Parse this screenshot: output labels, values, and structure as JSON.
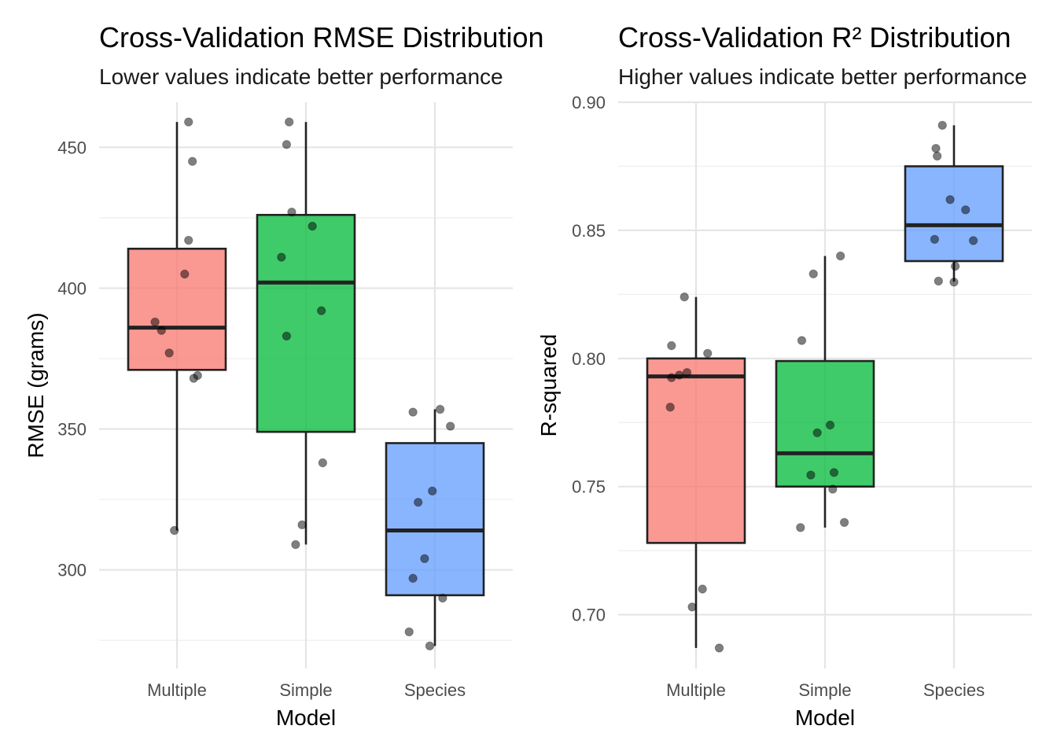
{
  "chart_data": [
    {
      "type": "box",
      "title": "Cross-Validation RMSE Distribution",
      "subtitle": "Lower values indicate better performance",
      "xlabel": "Model",
      "ylabel": "RMSE (grams)",
      "categories": [
        "Multiple",
        "Simple",
        "Species"
      ],
      "ylim": [
        265,
        466
      ],
      "yticks": [
        300,
        350,
        400,
        450
      ],
      "colors": [
        "#F8766D",
        "#00BA38",
        "#619CFF"
      ],
      "boxes": [
        {
          "name": "Multiple",
          "whisker_low": 314,
          "q1": 371,
          "median": 386,
          "q3": 414,
          "whisker_high": 459
        },
        {
          "name": "Simple",
          "whisker_low": 309,
          "q1": 349,
          "median": 402,
          "q3": 426,
          "whisker_high": 459
        },
        {
          "name": "Species",
          "whisker_low": 273,
          "q1": 291,
          "median": 314,
          "q3": 345,
          "whisker_high": 357
        }
      ],
      "points": [
        {
          "category": "Multiple",
          "y": 459,
          "jitter": 0.09
        },
        {
          "category": "Multiple",
          "y": 445,
          "jitter": 0.12
        },
        {
          "category": "Multiple",
          "y": 417,
          "jitter": 0.09
        },
        {
          "category": "Multiple",
          "y": 405,
          "jitter": 0.06
        },
        {
          "category": "Multiple",
          "y": 388,
          "jitter": -0.17
        },
        {
          "category": "Multiple",
          "y": 385,
          "jitter": -0.12
        },
        {
          "category": "Multiple",
          "y": 377,
          "jitter": -0.06
        },
        {
          "category": "Multiple",
          "y": 369,
          "jitter": 0.16
        },
        {
          "category": "Multiple",
          "y": 368,
          "jitter": 0.13
        },
        {
          "category": "Multiple",
          "y": 314,
          "jitter": -0.02
        },
        {
          "category": "Simple",
          "y": 459,
          "jitter": -0.13
        },
        {
          "category": "Simple",
          "y": 451,
          "jitter": -0.15
        },
        {
          "category": "Simple",
          "y": 427,
          "jitter": -0.11
        },
        {
          "category": "Simple",
          "y": 422,
          "jitter": 0.05
        },
        {
          "category": "Simple",
          "y": 411,
          "jitter": -0.19
        },
        {
          "category": "Simple",
          "y": 392,
          "jitter": 0.12
        },
        {
          "category": "Simple",
          "y": 383,
          "jitter": -0.15
        },
        {
          "category": "Simple",
          "y": 338,
          "jitter": 0.13
        },
        {
          "category": "Simple",
          "y": 316,
          "jitter": -0.03
        },
        {
          "category": "Simple",
          "y": 309,
          "jitter": -0.08
        },
        {
          "category": "Species",
          "y": 357,
          "jitter": 0.04
        },
        {
          "category": "Species",
          "y": 356,
          "jitter": -0.17
        },
        {
          "category": "Species",
          "y": 351,
          "jitter": 0.12
        },
        {
          "category": "Species",
          "y": 328,
          "jitter": -0.02
        },
        {
          "category": "Species",
          "y": 324,
          "jitter": -0.13
        },
        {
          "category": "Species",
          "y": 304,
          "jitter": -0.08
        },
        {
          "category": "Species",
          "y": 297,
          "jitter": -0.17
        },
        {
          "category": "Species",
          "y": 290,
          "jitter": 0.06
        },
        {
          "category": "Species",
          "y": 278,
          "jitter": -0.2
        },
        {
          "category": "Species",
          "y": 273,
          "jitter": -0.04
        }
      ]
    },
    {
      "type": "box",
      "title": "Cross-Validation R² Distribution",
      "subtitle": "Higher values indicate better performance",
      "xlabel": "Model",
      "ylabel": "R-squared",
      "categories": [
        "Multiple",
        "Simple",
        "Species"
      ],
      "ylim": [
        0.679,
        0.9
      ],
      "yticks": [
        0.7,
        0.75,
        0.8,
        0.85,
        0.9
      ],
      "yticklabels": [
        "0.70",
        "0.75",
        "0.80",
        "0.85",
        "0.90"
      ],
      "colors": [
        "#F8766D",
        "#00BA38",
        "#619CFF"
      ],
      "boxes": [
        {
          "name": "Multiple",
          "whisker_low": 0.687,
          "q1": 0.728,
          "median": 0.793,
          "q3": 0.8,
          "whisker_high": 0.824
        },
        {
          "name": "Simple",
          "whisker_low": 0.734,
          "q1": 0.75,
          "median": 0.763,
          "q3": 0.799,
          "whisker_high": 0.84
        },
        {
          "name": "Species",
          "whisker_low": 0.83,
          "q1": 0.838,
          "median": 0.852,
          "q3": 0.875,
          "whisker_high": 0.891
        }
      ],
      "points": [
        {
          "category": "Multiple",
          "y": 0.824,
          "jitter": -0.09
        },
        {
          "category": "Multiple",
          "y": 0.805,
          "jitter": -0.19
        },
        {
          "category": "Multiple",
          "y": 0.802,
          "jitter": 0.09
        },
        {
          "category": "Multiple",
          "y": 0.7945,
          "jitter": -0.07
        },
        {
          "category": "Multiple",
          "y": 0.7935,
          "jitter": -0.13
        },
        {
          "category": "Multiple",
          "y": 0.7925,
          "jitter": -0.19
        },
        {
          "category": "Multiple",
          "y": 0.781,
          "jitter": -0.2
        },
        {
          "category": "Multiple",
          "y": 0.71,
          "jitter": 0.05
        },
        {
          "category": "Multiple",
          "y": 0.703,
          "jitter": -0.03
        },
        {
          "category": "Multiple",
          "y": 0.687,
          "jitter": 0.18
        },
        {
          "category": "Simple",
          "y": 0.84,
          "jitter": 0.12
        },
        {
          "category": "Simple",
          "y": 0.833,
          "jitter": -0.09
        },
        {
          "category": "Simple",
          "y": 0.807,
          "jitter": -0.18
        },
        {
          "category": "Simple",
          "y": 0.774,
          "jitter": 0.04
        },
        {
          "category": "Simple",
          "y": 0.771,
          "jitter": -0.06
        },
        {
          "category": "Simple",
          "y": 0.7555,
          "jitter": 0.07
        },
        {
          "category": "Simple",
          "y": 0.7545,
          "jitter": -0.11
        },
        {
          "category": "Simple",
          "y": 0.749,
          "jitter": 0.06
        },
        {
          "category": "Simple",
          "y": 0.736,
          "jitter": 0.15
        },
        {
          "category": "Simple",
          "y": 0.734,
          "jitter": -0.19
        },
        {
          "category": "Species",
          "y": 0.891,
          "jitter": -0.09
        },
        {
          "category": "Species",
          "y": 0.882,
          "jitter": -0.14
        },
        {
          "category": "Species",
          "y": 0.879,
          "jitter": -0.13
        },
        {
          "category": "Species",
          "y": 0.862,
          "jitter": -0.03
        },
        {
          "category": "Species",
          "y": 0.858,
          "jitter": 0.09
        },
        {
          "category": "Species",
          "y": 0.8465,
          "jitter": -0.15
        },
        {
          "category": "Species",
          "y": 0.846,
          "jitter": 0.15
        },
        {
          "category": "Species",
          "y": 0.836,
          "jitter": 0.01
        },
        {
          "category": "Species",
          "y": 0.8302,
          "jitter": -0.12
        },
        {
          "category": "Species",
          "y": 0.8298,
          "jitter": 0.0
        }
      ]
    }
  ]
}
